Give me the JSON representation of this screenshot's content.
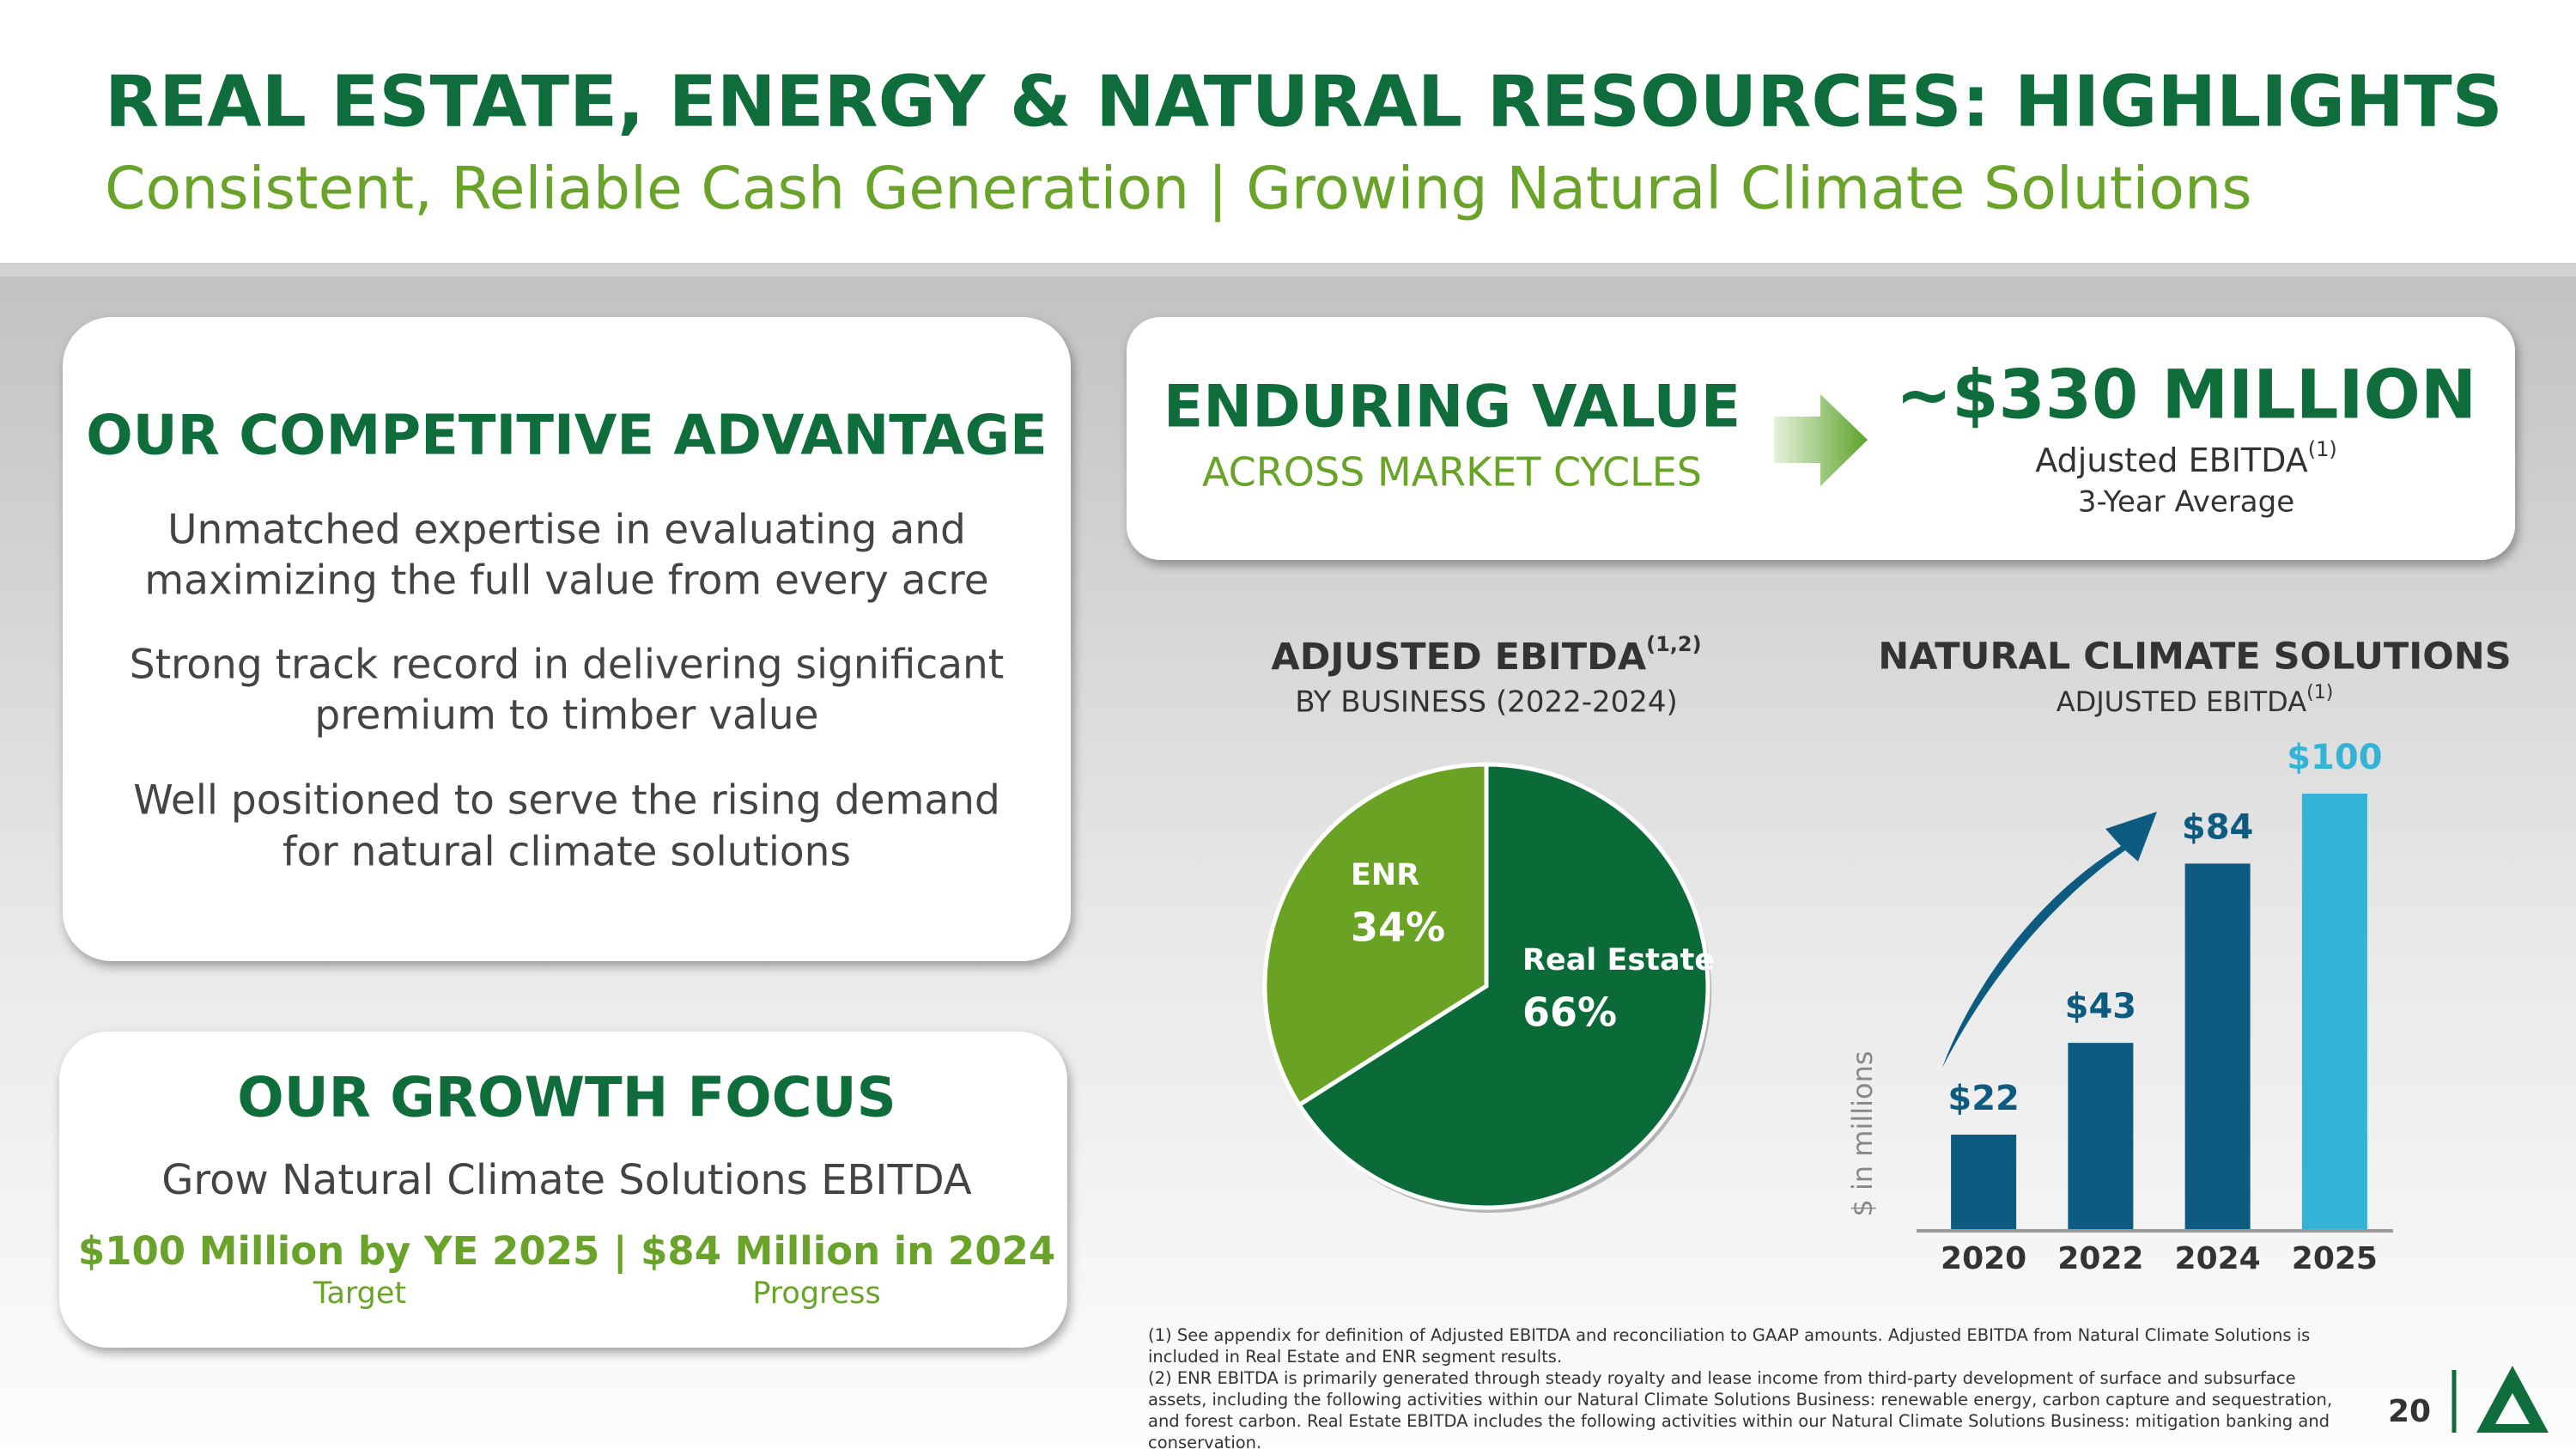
{
  "header": {
    "title": "REAL ESTATE, ENERGY & NATURAL RESOURCES: HIGHLIGHTS",
    "subtitle": "Consistent, Reliable Cash Generation | Growing Natural Climate Solutions"
  },
  "advantage": {
    "title": "OUR COMPETITIVE ADVANTAGE",
    "points": [
      [
        "Unmatched expertise in evaluating and",
        "maximizing the full value from every acre"
      ],
      [
        "Strong track record in delivering significant",
        "premium to timber value"
      ],
      [
        "Well positioned to serve the rising demand",
        "for natural climate solutions"
      ]
    ]
  },
  "growth": {
    "title": "OUR GROWTH FOCUS",
    "text": "Grow Natural Climate Solutions EBITDA",
    "target": "$100 Million by YE 2025",
    "separator": "|",
    "progress": "$84 Million in 2024",
    "target_label": "Target",
    "progress_label": "Progress"
  },
  "value_box": {
    "title": "ENDURING VALUE",
    "subtitle": "ACROSS MARKET CYCLES",
    "amount": "~$330 MILLION",
    "metric": "Adjusted EBITDA",
    "metric_note": "(1)",
    "period": "3-Year Average"
  },
  "chart_data": [
    {
      "type": "pie",
      "title": "ADJUSTED EBITDA",
      "title_note": "(1,2)",
      "subtitle": "BY BUSINESS (2022-2024)",
      "categories": [
        "Real Estate",
        "ENR"
      ],
      "values": [
        66,
        34
      ],
      "value_labels": [
        "66%",
        "34%"
      ],
      "colors": [
        "#0a6b39",
        "#6aa324"
      ]
    },
    {
      "type": "bar",
      "title": "NATURAL CLIMATE SOLUTIONS",
      "subtitle": "ADJUSTED EBITDA",
      "subtitle_note": "(1)",
      "y_label": "$ in millions",
      "categories": [
        "2020",
        "2022",
        "2024",
        "2025"
      ],
      "values": [
        22,
        43,
        84,
        100
      ],
      "value_labels": [
        "$22",
        "$43",
        "$84",
        "$100"
      ],
      "colors": [
        "#0d5b80",
        "#0d5b80",
        "#0d5b80",
        "#33b3d6"
      ],
      "ylim": [
        0,
        100
      ]
    }
  ],
  "footnotes": [
    "(1) See appendix for definition of Adjusted EBITDA and reconciliation to GAAP amounts. Adjusted EBITDA from Natural Climate Solutions is included in Real Estate and ENR segment results.",
    "(2) ENR EBITDA is primarily generated through steady royalty and lease income from third-party development of surface and subsurface assets, including the following activities within our Natural Climate Solutions Business: renewable energy, carbon capture and sequestration, and forest carbon. Real Estate EBITDA includes the following activities within our Natural Climate Solutions Business: mitigation banking and conservation."
  ],
  "page_number": "20"
}
